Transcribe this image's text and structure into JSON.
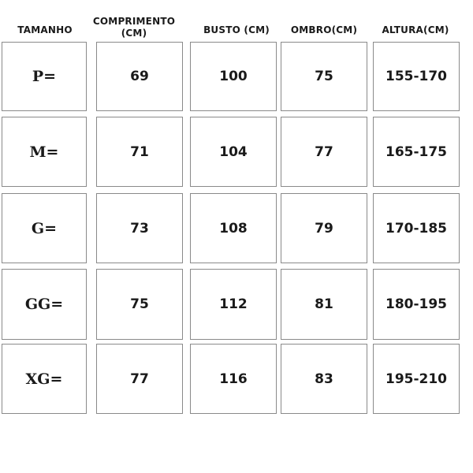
{
  "headers": [
    "TAMANHO",
    "COMPRIMENTO",
    "(CM)",
    "BUSTO (CM)",
    "OMBRO(CM)",
    "ALTURA(CM)"
  ],
  "rows": [
    [
      "P=",
      "69",
      "100",
      "75",
      "155-170"
    ],
    [
      "M=",
      "71",
      "104",
      "77",
      "165-175"
    ],
    [
      "G=",
      "73",
      "108",
      "79",
      "170-185"
    ],
    [
      "GG=",
      "75",
      "112",
      "81",
      "180-195"
    ],
    [
      "XG=",
      "77",
      "116",
      "83",
      "195-210"
    ]
  ]
}
